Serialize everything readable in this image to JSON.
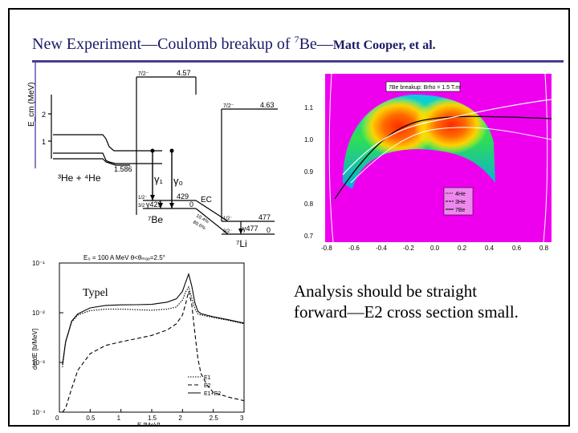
{
  "slide": {
    "title_main": "New Experiment—Coulomb breakup of ",
    "title_sup": "7",
    "title_rest": "Be—",
    "title_authors": "Matt Cooper, et al.",
    "caption_line1": "Analysis should be straight",
    "caption_line2": "forward—E2 cross section small.",
    "typel_label": "Typel"
  },
  "level_scheme": {
    "ylabel": "E_cm (MeV)",
    "yticks": [
      "2",
      "1"
    ],
    "threshold": "1.586",
    "channel": "³He + ⁴He",
    "gamma1": "γ₁",
    "gamma0": "γ₀",
    "be_label": "⁷Be",
    "li_label": "⁷Li",
    "ec_label": "EC",
    "be_levels": [
      {
        "jpi": "7/2⁻",
        "energy": "4.57"
      },
      {
        "jpi": "1/2⁻",
        "energy": "429"
      },
      {
        "jpi": "3/2⁻",
        "energy": "0"
      }
    ],
    "li_levels": [
      {
        "jpi": "7/2⁻",
        "energy": "4.63"
      },
      {
        "jpi": "1/2⁻",
        "energy": "477"
      },
      {
        "jpi": "3/2⁻",
        "energy": "0"
      }
    ],
    "gamma_be": "γ429",
    "gamma_li": "γ477",
    "branch1": "10.4%",
    "branch2": "89.6%"
  },
  "heatmap_plot": {
    "legend_title": "7Be breakup: Brho = 1.5 T.m",
    "legend_items": [
      "4He",
      "3He",
      "7Be"
    ],
    "xticks": [
      "-0.8",
      "-0.6",
      "-0.4",
      "-0.2",
      "0.0",
      "0.2",
      "0.4",
      "0.6",
      "0.8"
    ],
    "yticks": [
      "1.1",
      "1.0",
      "0.9",
      "0.8",
      "0.7"
    ]
  },
  "chart_data": {
    "type": "line",
    "title": "E₀ = 100 A MeV   θ<θₘₐₓ=2.5°",
    "xlabel": "E  [MeV]",
    "ylabel": "dσ/dE  [b/MeV]",
    "x_log": false,
    "y_log": true,
    "xlim": [
      0,
      3
    ],
    "ylim": [
      0.0001,
      0.1
    ],
    "xticks": [
      "0",
      "0.5",
      "1",
      "1.5",
      "2",
      "2.5",
      "3"
    ],
    "yticks": [
      "10⁻¹",
      "10⁻²",
      "10⁻³",
      "10⁻⁴"
    ],
    "legend_position": "bottom-right",
    "x": [
      0.05,
      0.1,
      0.2,
      0.3,
      0.5,
      0.75,
      1.0,
      1.25,
      1.5,
      1.75,
      1.9,
      2.0,
      2.05,
      2.1,
      2.15,
      2.2,
      2.25,
      2.3,
      2.4,
      2.5,
      2.75,
      3.0
    ],
    "series": [
      {
        "name": "E1",
        "style": "dotted",
        "values": [
          0.0008,
          0.0025,
          0.0065,
          0.009,
          0.011,
          0.0118,
          0.0118,
          0.0115,
          0.0112,
          0.0118,
          0.013,
          0.018,
          0.026,
          0.033,
          0.02,
          0.012,
          0.0095,
          0.009,
          0.0085,
          0.008,
          0.007,
          0.006
        ]
      },
      {
        "name": "E2",
        "style": "dashed",
        "values": [
          0.0001,
          0.00012,
          0.0003,
          0.0007,
          0.0015,
          0.0022,
          0.0026,
          0.003,
          0.0035,
          0.0045,
          0.006,
          0.009,
          0.015,
          0.027,
          0.015,
          0.004,
          0.0012,
          0.0006,
          0.00035,
          0.00025,
          0.0002,
          0.00017
        ]
      },
      {
        "name": "E1+E2",
        "style": "solid",
        "values": [
          0.0009,
          0.0026,
          0.0068,
          0.0095,
          0.0125,
          0.014,
          0.0144,
          0.0145,
          0.0147,
          0.0163,
          0.019,
          0.027,
          0.041,
          0.06,
          0.035,
          0.016,
          0.0107,
          0.0096,
          0.0089,
          0.0083,
          0.0072,
          0.0062
        ]
      }
    ]
  }
}
